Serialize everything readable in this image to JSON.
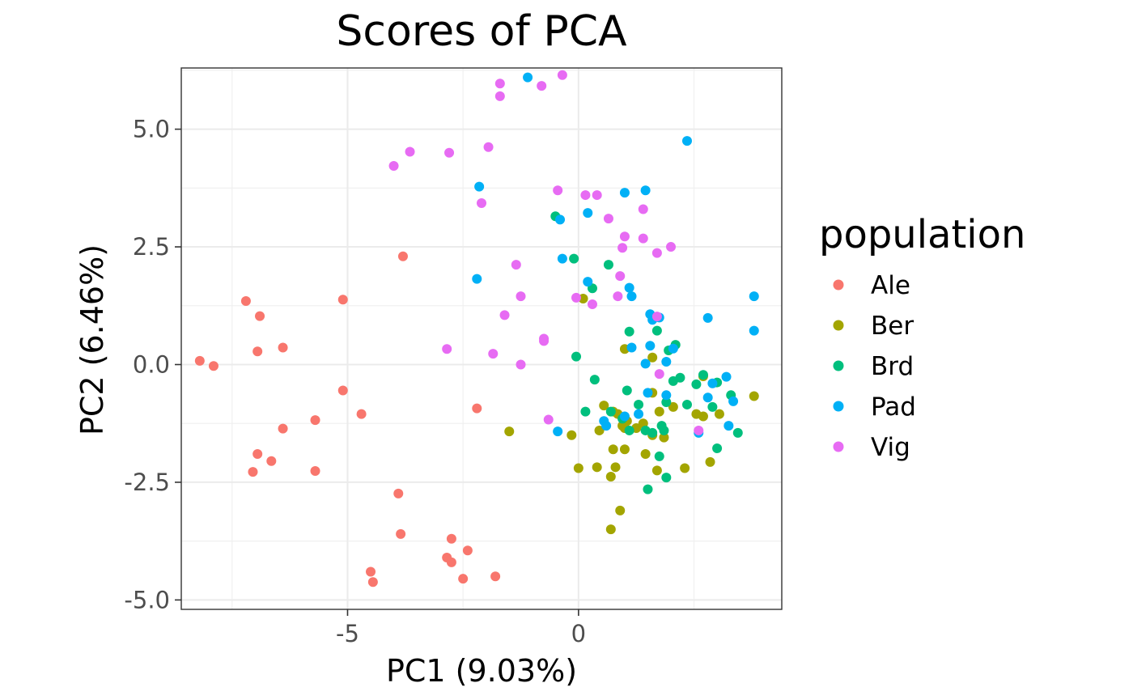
{
  "chart_data": {
    "type": "scatter",
    "title": "Scores of PCA",
    "xlabel": "PC1 (9.03%)",
    "ylabel": "PC2 (6.46%)",
    "xlim": [
      -8.6,
      4.4
    ],
    "ylim": [
      -5.2,
      6.3
    ],
    "x_ticks": [
      -5,
      0
    ],
    "x_tick_labels": [
      "-5",
      "0"
    ],
    "y_ticks": [
      -5.0,
      -2.5,
      0.0,
      2.5,
      5.0
    ],
    "y_tick_labels": [
      "-5.0",
      "-2.5",
      "0.0",
      "2.5",
      "5.0"
    ],
    "grid": true,
    "legend": {
      "title": "population",
      "position": "right"
    },
    "series": [
      {
        "name": "Ale",
        "color": "#F8766D",
        "points": [
          [
            -8.2,
            0.08
          ],
          [
            -7.9,
            -0.03
          ],
          [
            -7.2,
            1.35
          ],
          [
            -6.9,
            1.03
          ],
          [
            -6.95,
            0.28
          ],
          [
            -6.4,
            0.36
          ],
          [
            -6.4,
            -1.36
          ],
          [
            -5.7,
            -1.18
          ],
          [
            -5.1,
            1.38
          ],
          [
            -5.1,
            -0.55
          ],
          [
            -4.7,
            -1.05
          ],
          [
            -3.8,
            2.3
          ],
          [
            -6.95,
            -1.9
          ],
          [
            -6.65,
            -2.05
          ],
          [
            -7.05,
            -2.28
          ],
          [
            -5.7,
            -2.26
          ],
          [
            -3.9,
            -2.74
          ],
          [
            -3.85,
            -3.6
          ],
          [
            -2.75,
            -3.7
          ],
          [
            -2.85,
            -4.1
          ],
          [
            -2.75,
            -4.2
          ],
          [
            -2.4,
            -3.95
          ],
          [
            -2.5,
            -4.55
          ],
          [
            -4.5,
            -4.4
          ],
          [
            -4.45,
            -4.62
          ],
          [
            -1.8,
            -4.5
          ],
          [
            -2.2,
            -0.93
          ]
        ]
      },
      {
        "name": "Ber",
        "color": "#A3A500",
        "points": [
          [
            0.1,
            1.4
          ],
          [
            1.0,
            0.33
          ],
          [
            1.6,
            0.15
          ],
          [
            -1.5,
            -1.42
          ],
          [
            -0.15,
            -1.5
          ],
          [
            0.55,
            -0.87
          ],
          [
            0.45,
            -1.4
          ],
          [
            0.75,
            -1.0
          ],
          [
            0.85,
            -1.05
          ],
          [
            0.95,
            -1.3
          ],
          [
            1.05,
            -1.2
          ],
          [
            1.25,
            -1.35
          ],
          [
            1.4,
            -1.25
          ],
          [
            1.6,
            -1.5
          ],
          [
            1.75,
            -1.0
          ],
          [
            1.85,
            -1.55
          ],
          [
            2.05,
            -0.9
          ],
          [
            2.55,
            -1.05
          ],
          [
            2.7,
            -1.1
          ],
          [
            3.05,
            -1.05
          ],
          [
            3.8,
            -0.67
          ],
          [
            1.6,
            -0.6
          ],
          [
            0.0,
            -2.2
          ],
          [
            0.4,
            -2.18
          ],
          [
            0.75,
            -1.8
          ],
          [
            0.8,
            -2.18
          ],
          [
            1.0,
            -1.8
          ],
          [
            1.45,
            -1.9
          ],
          [
            1.7,
            -2.25
          ],
          [
            2.3,
            -2.2
          ],
          [
            2.85,
            -2.07
          ],
          [
            0.7,
            -2.38
          ],
          [
            0.9,
            -3.1
          ],
          [
            0.7,
            -3.5
          ],
          [
            1.0,
            -1.35
          ],
          [
            2.7,
            -0.25
          ]
        ]
      },
      {
        "name": "Brd",
        "color": "#00BF7D",
        "points": [
          [
            -0.5,
            3.15
          ],
          [
            -0.1,
            2.25
          ],
          [
            0.65,
            2.12
          ],
          [
            0.3,
            1.62
          ],
          [
            1.1,
            0.7
          ],
          [
            1.7,
            0.72
          ],
          [
            1.95,
            0.3
          ],
          [
            2.1,
            0.42
          ],
          [
            0.35,
            -0.32
          ],
          [
            -0.05,
            0.17
          ],
          [
            1.05,
            -0.55
          ],
          [
            0.15,
            -1.0
          ],
          [
            0.7,
            -1.0
          ],
          [
            0.95,
            -1.15
          ],
          [
            1.3,
            -0.85
          ],
          [
            1.45,
            -1.4
          ],
          [
            1.6,
            -1.45
          ],
          [
            1.8,
            -1.3
          ],
          [
            1.85,
            -1.4
          ],
          [
            1.9,
            -0.8
          ],
          [
            2.05,
            -0.35
          ],
          [
            2.2,
            -0.28
          ],
          [
            2.35,
            -0.85
          ],
          [
            2.55,
            -0.42
          ],
          [
            2.7,
            -0.22
          ],
          [
            2.9,
            -0.9
          ],
          [
            3.0,
            -0.38
          ],
          [
            3.3,
            -0.65
          ],
          [
            3.45,
            -1.45
          ],
          [
            3.0,
            -1.78
          ],
          [
            1.5,
            -2.65
          ],
          [
            1.9,
            -2.4
          ],
          [
            1.75,
            -1.95
          ],
          [
            1.1,
            -1.4
          ]
        ]
      },
      {
        "name": "Pad",
        "color": "#00B0F6",
        "points": [
          [
            -1.1,
            6.1
          ],
          [
            -2.15,
            3.78
          ],
          [
            -0.4,
            3.08
          ],
          [
            0.2,
            3.22
          ],
          [
            1.0,
            3.65
          ],
          [
            1.45,
            3.7
          ],
          [
            2.35,
            4.75
          ],
          [
            -0.35,
            2.25
          ],
          [
            -2.2,
            1.82
          ],
          [
            0.2,
            1.76
          ],
          [
            1.1,
            1.63
          ],
          [
            1.15,
            1.45
          ],
          [
            1.55,
            1.07
          ],
          [
            1.6,
            0.95
          ],
          [
            1.75,
            1.0
          ],
          [
            2.8,
            0.99
          ],
          [
            3.8,
            1.45
          ],
          [
            3.8,
            0.72
          ],
          [
            1.55,
            0.4
          ],
          [
            1.15,
            0.36
          ],
          [
            1.45,
            0.02
          ],
          [
            1.9,
            0.06
          ],
          [
            2.05,
            0.34
          ],
          [
            1.9,
            -0.65
          ],
          [
            2.8,
            -0.7
          ],
          [
            3.2,
            -0.26
          ],
          [
            3.35,
            -0.78
          ],
          [
            2.9,
            -0.4
          ],
          [
            1.5,
            -0.6
          ],
          [
            0.55,
            -1.2
          ],
          [
            0.6,
            -1.3
          ],
          [
            1.0,
            -1.1
          ],
          [
            1.3,
            -1.05
          ],
          [
            2.6,
            -1.45
          ],
          [
            3.25,
            -1.3
          ],
          [
            -0.45,
            -1.42
          ]
        ]
      },
      {
        "name": "Vig",
        "color": "#E76BF3",
        "points": [
          [
            -0.35,
            6.15
          ],
          [
            -0.8,
            5.92
          ],
          [
            -1.7,
            5.97
          ],
          [
            -1.7,
            5.7
          ],
          [
            -4.0,
            4.22
          ],
          [
            -3.65,
            4.52
          ],
          [
            -2.8,
            4.5
          ],
          [
            -1.95,
            4.62
          ],
          [
            -2.1,
            3.43
          ],
          [
            -0.45,
            3.7
          ],
          [
            0.15,
            3.6
          ],
          [
            0.4,
            3.6
          ],
          [
            0.65,
            3.1
          ],
          [
            1.4,
            3.3
          ],
          [
            1.0,
            2.72
          ],
          [
            1.4,
            2.68
          ],
          [
            0.95,
            2.48
          ],
          [
            1.7,
            2.37
          ],
          [
            2.0,
            2.5
          ],
          [
            -1.35,
            2.12
          ],
          [
            0.9,
            1.88
          ],
          [
            -1.25,
            1.45
          ],
          [
            0.85,
            1.45
          ],
          [
            0.3,
            1.28
          ],
          [
            -1.6,
            1.05
          ],
          [
            -0.05,
            1.42
          ],
          [
            1.7,
            1.02
          ],
          [
            -2.85,
            0.33
          ],
          [
            -1.85,
            0.23
          ],
          [
            -0.75,
            0.55
          ],
          [
            -0.75,
            0.5
          ],
          [
            -1.25,
            -0.0
          ],
          [
            1.75,
            -0.2
          ],
          [
            -0.65,
            -1.17
          ],
          [
            2.6,
            -1.4
          ]
        ]
      }
    ]
  }
}
